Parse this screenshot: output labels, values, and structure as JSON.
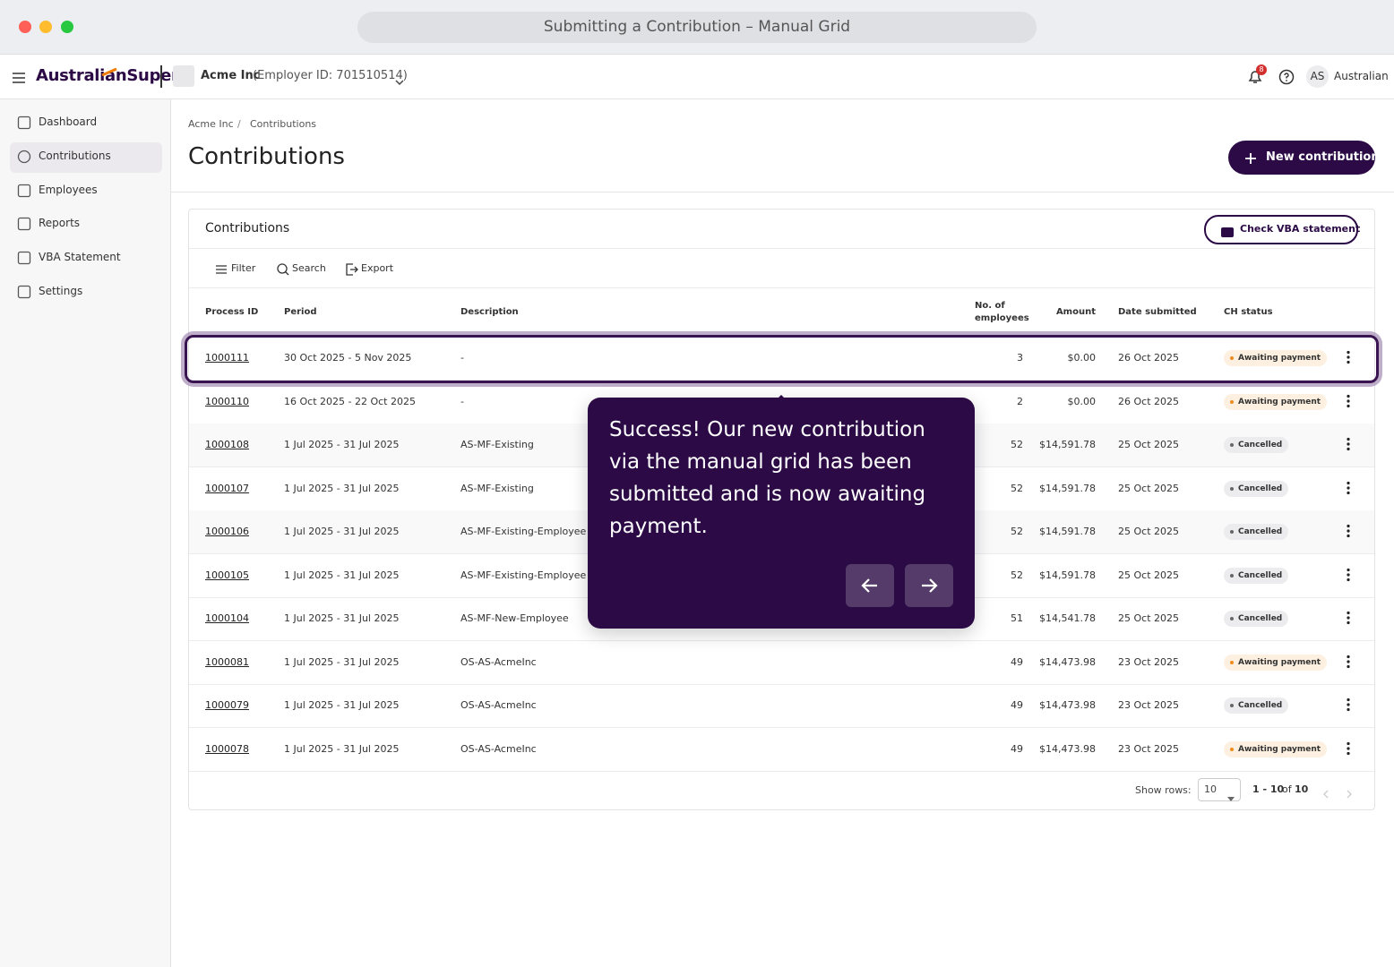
{
  "window_title": "Submitting a Contribution – Manual Grid",
  "header": {
    "logo": "AustralianSuper",
    "employer": "Acme Inc",
    "employer_id": "(Employer ID: 701510514)",
    "notification_count": "8",
    "user_initials": "AS",
    "user_name": "Australian"
  },
  "nav": [
    "Dashboard",
    "Contributions",
    "Employees",
    "Reports",
    "VBA Statement",
    "Settings"
  ],
  "breadcrumb": {
    "items": [
      "Acme Inc",
      "Contributions"
    ],
    "separator": "/"
  },
  "page_title": "Contributions",
  "new_button": "New contribution",
  "card": {
    "title": "Contributions",
    "check_button": "Check VBA statement",
    "toolbar": [
      "Filter",
      "Search",
      "Export"
    ]
  },
  "table": {
    "columns": [
      "Process ID",
      "Period",
      "Description",
      "No. of employees",
      "Amount",
      "Date submitted",
      "CH status"
    ],
    "rows": [
      {
        "id": "1000111",
        "period": "30 Oct 2025 - 5 Nov 2025",
        "description": "-",
        "employees": 3,
        "amount": "$0.00",
        "date": "26 Oct 2025",
        "status": "Awaiting payment"
      },
      {
        "id": "1000110",
        "period": "16 Oct 2025 - 22 Oct 2025",
        "description": "-",
        "employees": 2,
        "amount": "$0.00",
        "date": "26 Oct 2025",
        "status": "Awaiting payment"
      },
      {
        "id": "1000108",
        "period": "1 Jul 2025 - 31 Jul 2025",
        "description": "AS-MF-Existing",
        "employees": 52,
        "amount": "$14,591.78",
        "date": "25 Oct 2025",
        "status": "Cancelled"
      },
      {
        "id": "1000107",
        "period": "1 Jul 2025 - 31 Jul 2025",
        "description": "AS-MF-Existing",
        "employees": 52,
        "amount": "$14,591.78",
        "date": "25 Oct 2025",
        "status": "Cancelled"
      },
      {
        "id": "1000106",
        "period": "1 Jul 2025 - 31 Jul 2025",
        "description": "AS-MF-Existing-Employee",
        "employees": 52,
        "amount": "$14,591.78",
        "date": "25 Oct 2025",
        "status": "Cancelled"
      },
      {
        "id": "1000105",
        "period": "1 Jul 2025 - 31 Jul 2025",
        "description": "AS-MF-Existing-Employee",
        "employees": 52,
        "amount": "$14,591.78",
        "date": "25 Oct 2025",
        "status": "Cancelled"
      },
      {
        "id": "1000104",
        "period": "1 Jul 2025 - 31 Jul 2025",
        "description": "AS-MF-New-Employee",
        "employees": 51,
        "amount": "$14,541.78",
        "date": "25 Oct 2025",
        "status": "Cancelled"
      },
      {
        "id": "1000081",
        "period": "1 Jul 2025 - 31 Jul 2025",
        "description": "OS-AS-AcmeInc",
        "employees": 49,
        "amount": "$14,473.98",
        "date": "23 Oct 2025",
        "status": "Awaiting payment"
      },
      {
        "id": "1000079",
        "period": "1 Jul 2025 - 31 Jul 2025",
        "description": "OS-AS-AcmeInc",
        "employees": 49,
        "amount": "$14,473.98",
        "date": "23 Oct 2025",
        "status": "Cancelled"
      },
      {
        "id": "1000078",
        "period": "1 Jul 2025 - 31 Jul 2025",
        "description": "OS-AS-AcmeInc",
        "employees": 49,
        "amount": "$14,473.98",
        "date": "23 Oct 2025",
        "status": "Awaiting payment"
      }
    ]
  },
  "pagination": {
    "show_rows_label": "Show rows:",
    "rows_value": "10",
    "range": "1 - 10",
    "of": "of",
    "total": "10"
  },
  "tooltip": "Success! Our new contribution via the manual grid has been submitted and is now awaiting payment."
}
